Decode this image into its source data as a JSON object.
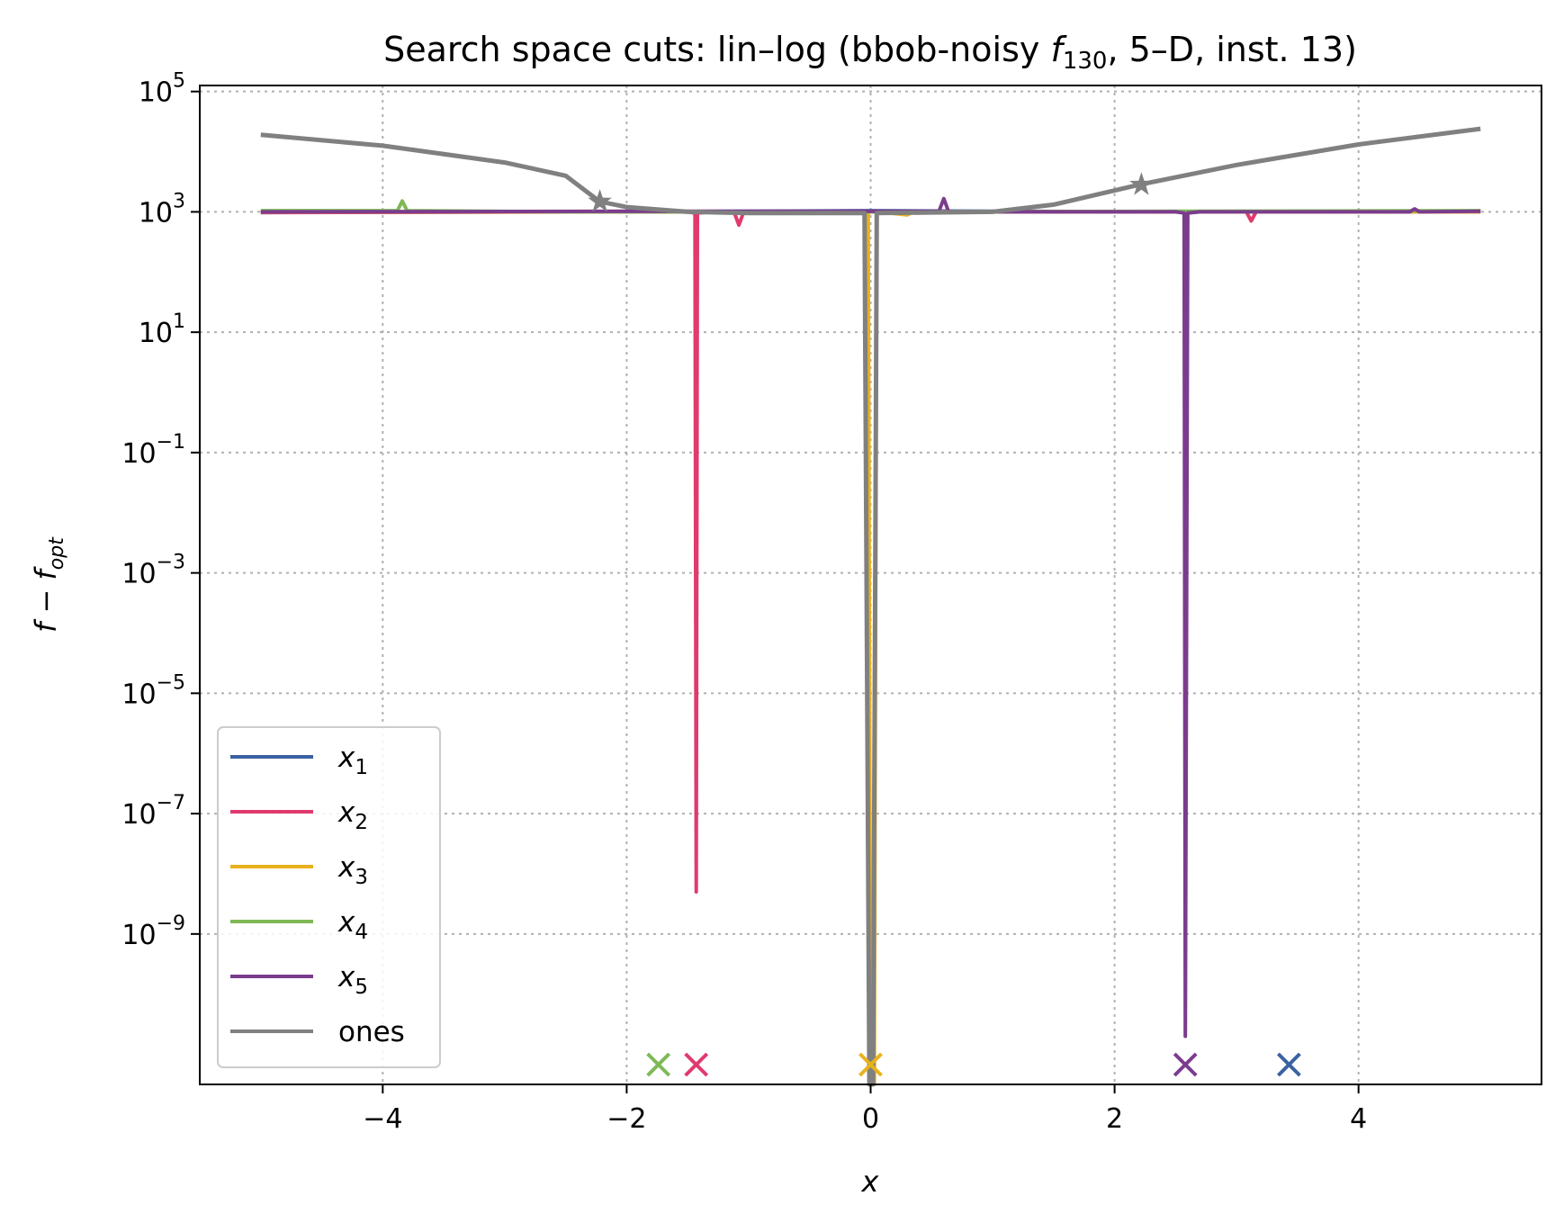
{
  "chart_data": {
    "type": "line",
    "title": {
      "prefix": "Search space cuts: lin–log (bbob-noisy ",
      "f": "f",
      "sub": "130",
      "suffix": ", 5–D, inst. 13)"
    },
    "xlabel": "x",
    "ylabel": {
      "main": "f − f",
      "sub": "opt"
    },
    "xlim": [
      -5.5,
      5.5
    ],
    "ylim_log10": [
      -11.5,
      5.1
    ],
    "y_scale": "log",
    "grid": true,
    "legend_position": "lower-left",
    "x_ticks": [
      {
        "value": -4,
        "label": "−4"
      },
      {
        "value": -2,
        "label": "−2"
      },
      {
        "value": 0,
        "label": "0"
      },
      {
        "value": 2,
        "label": "2"
      },
      {
        "value": 4,
        "label": "4"
      }
    ],
    "y_ticks": [
      {
        "log10": 5,
        "base": "10",
        "exp": "5"
      },
      {
        "log10": 3,
        "base": "10",
        "exp": "3"
      },
      {
        "log10": 1,
        "base": "10",
        "exp": "1"
      },
      {
        "log10": -1,
        "base": "10",
        "exp": "−1"
      },
      {
        "log10": -3,
        "base": "10",
        "exp": "−3"
      },
      {
        "log10": -5,
        "base": "10",
        "exp": "−5"
      },
      {
        "log10": -7,
        "base": "10",
        "exp": "−7"
      },
      {
        "log10": -9,
        "base": "10",
        "exp": "−9"
      }
    ],
    "series": [
      {
        "name": "x",
        "sub": "1",
        "color": "#3a62a1",
        "points": [
          [
            -5,
            2.99
          ],
          [
            -2.5,
            3.0
          ],
          [
            -1.0,
            3.01
          ],
          [
            0.0,
            3.02
          ],
          [
            1.0,
            3.01
          ],
          [
            2.5,
            3.0
          ],
          [
            5,
            3.01
          ]
        ],
        "optimum_x": 3.43
      },
      {
        "name": "x",
        "sub": "2",
        "color": "#e03a6e",
        "points": [
          [
            -5,
            2.99
          ],
          [
            -2.0,
            3.0
          ],
          [
            -1.5,
            3.0
          ],
          [
            -1.44,
            2.98
          ],
          [
            -1.43,
            -8.3
          ],
          [
            -1.42,
            2.98
          ],
          [
            -1.3,
            3.0
          ],
          [
            -1.12,
            3.0
          ],
          [
            -1.08,
            2.78
          ],
          [
            -1.04,
            3.0
          ],
          [
            0.0,
            3.0
          ],
          [
            3.08,
            3.0
          ],
          [
            3.12,
            2.85
          ],
          [
            3.16,
            3.0
          ],
          [
            5,
            3.0
          ]
        ],
        "optimum_x": -1.43
      },
      {
        "name": "x",
        "sub": "3",
        "color": "#e9b21c",
        "points": [
          [
            -5,
            3.0
          ],
          [
            -0.02,
            3.0
          ],
          [
            0.0,
            -11.5
          ],
          [
            0.03,
            -11.5
          ],
          [
            0.05,
            3.0
          ],
          [
            0.3,
            2.95
          ],
          [
            0.35,
            3.0
          ],
          [
            5,
            3.0
          ]
        ],
        "optimum_x": 0.0
      },
      {
        "name": "x",
        "sub": "4",
        "color": "#7eb956",
        "points": [
          [
            -5,
            3.02
          ],
          [
            -3.88,
            3.02
          ],
          [
            -3.84,
            3.18
          ],
          [
            -3.8,
            3.02
          ],
          [
            -2.5,
            3.0
          ],
          [
            0.0,
            3.0
          ],
          [
            2.5,
            3.01
          ],
          [
            5,
            3.02
          ]
        ],
        "optimum_x": -1.74
      },
      {
        "name": "x",
        "sub": "5",
        "color": "#7b3c8e",
        "points": [
          [
            -5,
            3.0
          ],
          [
            -2.0,
            3.01
          ],
          [
            0.56,
            3.01
          ],
          [
            0.6,
            3.22
          ],
          [
            0.64,
            3.0
          ],
          [
            2.5,
            3.0
          ],
          [
            2.57,
            2.98
          ],
          [
            2.58,
            -10.7
          ],
          [
            2.6,
            2.98
          ],
          [
            2.7,
            3.0
          ],
          [
            4.42,
            3.0
          ],
          [
            4.46,
            3.05
          ],
          [
            4.5,
            3.0
          ],
          [
            5,
            3.01
          ]
        ],
        "optimum_x": 2.58
      },
      {
        "name": "ones",
        "sub": "",
        "color": "#808080",
        "points": [
          [
            -5,
            4.28
          ],
          [
            -4.0,
            4.1
          ],
          [
            -3.0,
            3.82
          ],
          [
            -2.5,
            3.6
          ],
          [
            -2.22,
            3.17
          ],
          [
            -2.0,
            3.08
          ],
          [
            -1.5,
            3.0
          ],
          [
            -1.0,
            2.98
          ],
          [
            -0.05,
            2.98
          ],
          [
            -0.01,
            -11.5
          ],
          [
            0.02,
            -11.5
          ],
          [
            0.05,
            2.98
          ],
          [
            0.5,
            2.99
          ],
          [
            1.0,
            3.0
          ],
          [
            1.5,
            3.12
          ],
          [
            2.2,
            3.45
          ],
          [
            3.0,
            3.78
          ],
          [
            4.0,
            4.12
          ],
          [
            5,
            4.38
          ]
        ],
        "stars": [
          [
            -2.22,
            3.17
          ],
          [
            2.22,
            3.45
          ]
        ]
      }
    ]
  }
}
